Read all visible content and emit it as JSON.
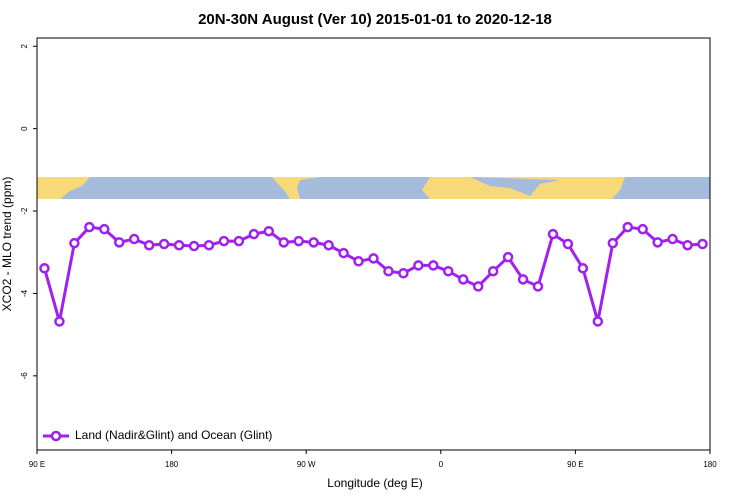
{
  "chart_data": {
    "type": "line",
    "title": "20N-30N August (Ver 10)   2015-01-01 to 2020-12-18",
    "xlabel": "Longitude (deg E)",
    "ylabel": "XCO2 - MLO trend (ppm)",
    "x": [
      95,
      105,
      115,
      125,
      135,
      145,
      155,
      165,
      175,
      185,
      195,
      205,
      215,
      225,
      235,
      245,
      255,
      265,
      275,
      285,
      295,
      305,
      315,
      325,
      335,
      345,
      355,
      365,
      375,
      385,
      395,
      405,
      415,
      425,
      435,
      445,
      455,
      465,
      475,
      485,
      495,
      505,
      515,
      525,
      535
    ],
    "series": [
      {
        "name": "Land (Nadir&Glint) and Ocean (Glint)",
        "color": "#a020f0",
        "values": [
          -3.39,
          -4.68,
          -2.78,
          -2.39,
          -2.44,
          -2.76,
          -2.68,
          -2.83,
          -2.8,
          -2.83,
          -2.85,
          -2.83,
          -2.73,
          -2.73,
          -2.56,
          -2.49,
          -2.76,
          -2.73,
          -2.76,
          -2.83,
          -3.02,
          -3.22,
          -3.15,
          -3.46,
          -3.51,
          -3.32,
          -3.32,
          -3.46,
          -3.66,
          -3.83,
          -3.46,
          -3.12,
          -3.66,
          -3.83,
          -2.56,
          -2.8,
          -3.39,
          -4.68,
          -2.78,
          -2.39,
          -2.44,
          -2.76,
          -2.68,
          -2.83,
          -2.8
        ]
      }
    ],
    "xlim": [
      90,
      540
    ],
    "xticks": [
      {
        "value": 90,
        "label": "90 E"
      },
      180,
      {
        "value": 270,
        "label": "90 W"
      },
      {
        "value": 360,
        "label": "0"
      },
      {
        "value": 450,
        "label": "90 E"
      },
      {
        "value": 540,
        "label": "180"
      }
    ],
    "ylim": [
      -7.8,
      2.2
    ],
    "yticks": [
      2,
      0,
      -2,
      -4,
      -6
    ],
    "legend": "bottomleft"
  }
}
